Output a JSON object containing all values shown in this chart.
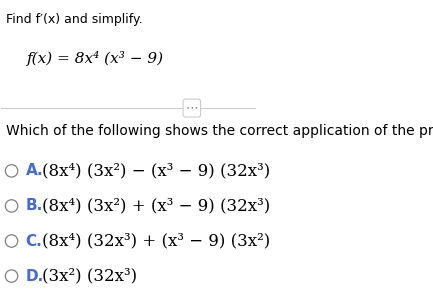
{
  "bg_color": "#ffffff",
  "title_text": "Find f′(x) and simplify.",
  "function_text": "f(x) = 8x⁴ (x³ − 9)",
  "question_text": "Which of the following shows the correct application of the product rule?",
  "options": [
    {
      "label": "A.",
      "expr": "(8x⁴) (3x²) − (x³ − 9) (32x³)"
    },
    {
      "label": "B.",
      "expr": "(8x⁴) (3x²) + (x³ − 9) (32x³)"
    },
    {
      "label": "C.",
      "expr": "(8x⁴) (32x³) + (x³ − 9) (3x²)"
    },
    {
      "label": "D.",
      "expr": "(3x²) (32x³)"
    }
  ],
  "title_fontsize": 9,
  "func_fontsize": 11,
  "question_fontsize": 10,
  "option_fontsize": 12,
  "label_color": "#4169E1",
  "text_color": "#000000",
  "circle_color": "#808080",
  "separator_color": "#cccccc",
  "dots_color": "#808080"
}
